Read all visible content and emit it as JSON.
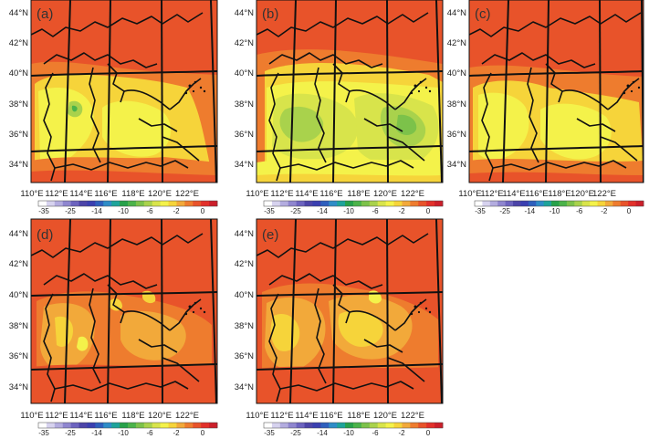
{
  "figure": {
    "panels": [
      {
        "id": "a",
        "label": "(a)"
      },
      {
        "id": "b",
        "label": "(b)"
      },
      {
        "id": "c",
        "label": "(c)"
      },
      {
        "id": "d",
        "label": "(d)"
      },
      {
        "id": "e",
        "label": "(e)"
      }
    ],
    "lat_labels": [
      "44°N",
      "42°N",
      "40°N",
      "38°N",
      "36°N",
      "34°N"
    ],
    "lon_labels": [
      "110°E",
      "112°E",
      "114°E",
      "116°E",
      "118°E",
      "120°E",
      "122°E"
    ],
    "colorbar": {
      "tick_labels": [
        "-35",
        "-25",
        "-14",
        "-10",
        "-6",
        "-2",
        "0"
      ],
      "colors": [
        "#ffffff",
        "#d6d2ee",
        "#b3acdf",
        "#8f86cf",
        "#6c63bf",
        "#4c44a8",
        "#3a3fb0",
        "#2e5fbd",
        "#2e8cc7",
        "#1ea39a",
        "#27a14a",
        "#4bb34a",
        "#7cc24a",
        "#a9d24c",
        "#d8e44b",
        "#f4f24a",
        "#f6d43a",
        "#f2a93a",
        "#ee7c2e",
        "#e8532a",
        "#e2302a",
        "#cc1f2a"
      ]
    }
  }
}
